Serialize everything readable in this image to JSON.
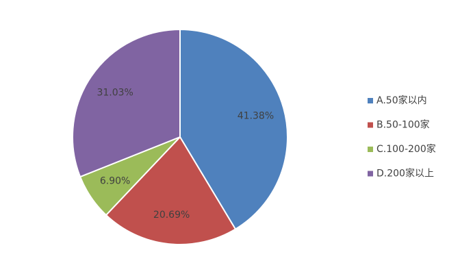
{
  "chart_data": {
    "type": "pie",
    "categories": [
      "A.50家以内",
      "B.50-100家",
      "C.100-200家",
      "D.200家以上"
    ],
    "values": [
      41.38,
      20.69,
      6.9,
      31.03
    ],
    "value_labels": [
      "41.38%",
      "20.69%",
      "6.90%",
      "31.03%"
    ],
    "colors": [
      "#4f81bd",
      "#c0504d",
      "#9bbb59",
      "#8064a2"
    ],
    "legend": "right"
  }
}
